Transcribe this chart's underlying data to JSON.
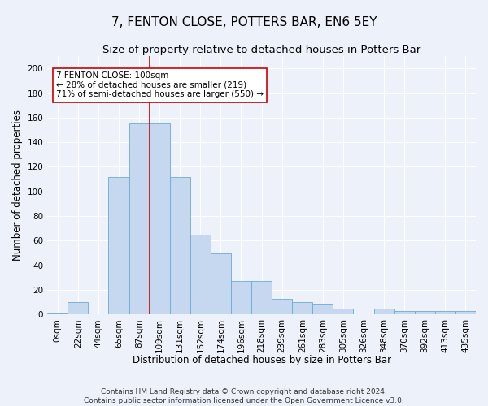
{
  "title": "7, FENTON CLOSE, POTTERS BAR, EN6 5EY",
  "subtitle": "Size of property relative to detached houses in Potters Bar",
  "xlabel": "Distribution of detached houses by size in Potters Bar",
  "ylabel": "Number of detached properties",
  "bar_color": "#c5d8f0",
  "bar_edge_color": "#6aaad4",
  "bin_labels": [
    "0sqm",
    "22sqm",
    "44sqm",
    "65sqm",
    "87sqm",
    "109sqm",
    "131sqm",
    "152sqm",
    "174sqm",
    "196sqm",
    "218sqm",
    "239sqm",
    "261sqm",
    "283sqm",
    "305sqm",
    "326sqm",
    "348sqm",
    "370sqm",
    "392sqm",
    "413sqm",
    "435sqm"
  ],
  "bar_heights": [
    1,
    10,
    0,
    112,
    155,
    155,
    112,
    65,
    50,
    27,
    27,
    13,
    10,
    8,
    5,
    0,
    5,
    3,
    3,
    3,
    3
  ],
  "ylim": [
    0,
    210
  ],
  "yticks": [
    0,
    20,
    40,
    60,
    80,
    100,
    120,
    140,
    160,
    180,
    200
  ],
  "annotation_text_line1": "7 FENTON CLOSE: 100sqm",
  "annotation_text_line2": "← 28% of detached houses are smaller (219)",
  "annotation_text_line3": "71% of semi-detached houses are larger (550) →",
  "footer_line1": "Contains HM Land Registry data © Crown copyright and database right 2024.",
  "footer_line2": "Contains public sector information licensed under the Open Government Licence v3.0.",
  "background_color": "#edf2fa",
  "plot_bg_color": "#edf2fa",
  "grid_color": "#ffffff",
  "annotation_box_color": "#ffffff",
  "annotation_box_edge": "#cc0000",
  "vline_color": "#cc0000",
  "title_fontsize": 11,
  "subtitle_fontsize": 9.5,
  "axis_label_fontsize": 8.5,
  "tick_fontsize": 7.5,
  "annotation_fontsize": 7.5,
  "footer_fontsize": 6.5,
  "vline_bin_index": 4.5
}
